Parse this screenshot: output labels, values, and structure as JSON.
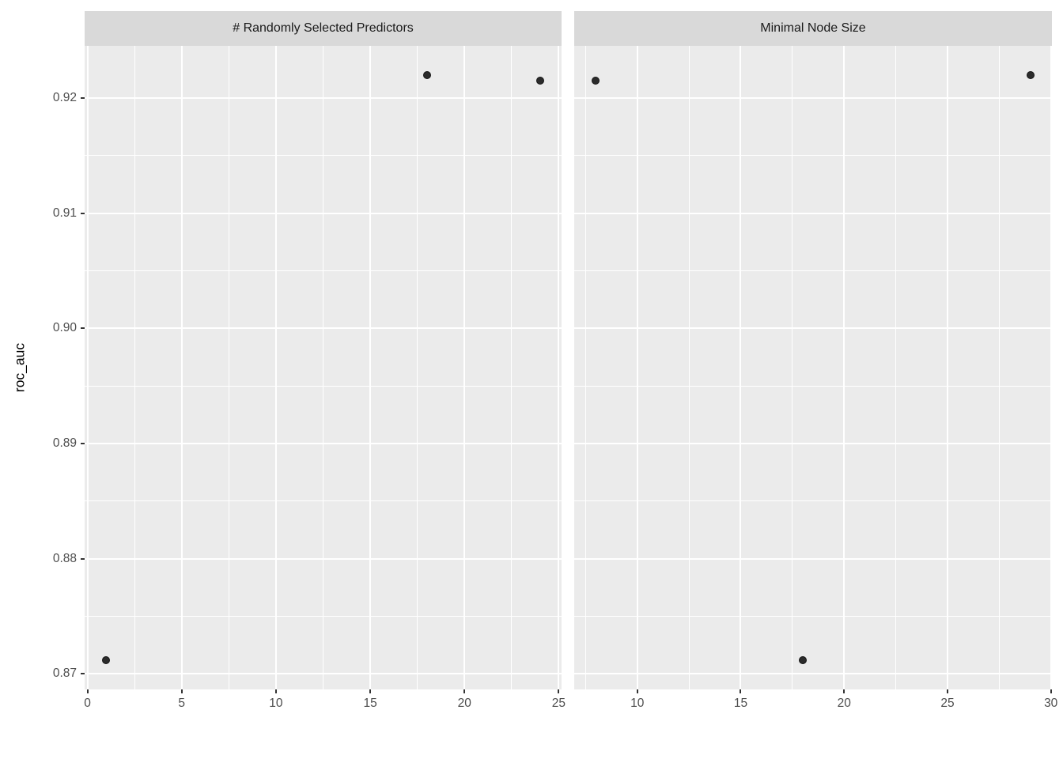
{
  "chart_data": {
    "type": "scatter",
    "title": "",
    "ylabel": "roc_auc",
    "xlabel": "",
    "legend_position": "none",
    "grid": true,
    "ylim": [
      0.86866,
      0.92454
    ],
    "y_ticks": [
      0.87,
      0.88,
      0.89,
      0.9,
      0.91,
      0.92
    ],
    "y_tick_labels": [
      "0.87",
      "0.88",
      "0.89",
      "0.90",
      "0.91",
      "0.92"
    ],
    "y_minor_ticks": [
      0.875,
      0.885,
      0.895,
      0.905,
      0.915
    ],
    "facets": [
      {
        "title": "# Randomly Selected Predictors",
        "xlim": [
          -0.15,
          25.15
        ],
        "x_ticks": [
          0,
          5,
          10,
          15,
          20,
          25
        ],
        "x_tick_labels": [
          "0",
          "5",
          "10",
          "15",
          "20",
          "25"
        ],
        "x_minor_ticks": [
          2.5,
          7.5,
          12.5,
          17.5,
          22.5
        ],
        "points": [
          {
            "x": 1,
            "y": 0.8712
          },
          {
            "x": 18,
            "y": 0.922
          },
          {
            "x": 24,
            "y": 0.9215
          }
        ]
      },
      {
        "title": "Minimal Node Size",
        "xlim": [
          6.95,
          30.05
        ],
        "x_ticks": [
          10,
          15,
          20,
          25,
          30
        ],
        "x_tick_labels": [
          "10",
          "15",
          "20",
          "25",
          "30"
        ],
        "x_minor_ticks": [
          7.5,
          12.5,
          17.5,
          22.5,
          27.5
        ],
        "points": [
          {
            "x": 8,
            "y": 0.9215
          },
          {
            "x": 18,
            "y": 0.8712
          },
          {
            "x": 29,
            "y": 0.922
          }
        ]
      }
    ],
    "colors": {
      "background": "#FFFFFF",
      "panel_bg": "#EBEBEB",
      "strip_bg": "#D9D9D9",
      "gridline": "#FFFFFF",
      "tick_mark": "#333333",
      "tick_label": "#4D4D4D",
      "strip_text": "#1A1A1A",
      "axis_title": "#000000",
      "point": "#2B2B2B"
    }
  }
}
